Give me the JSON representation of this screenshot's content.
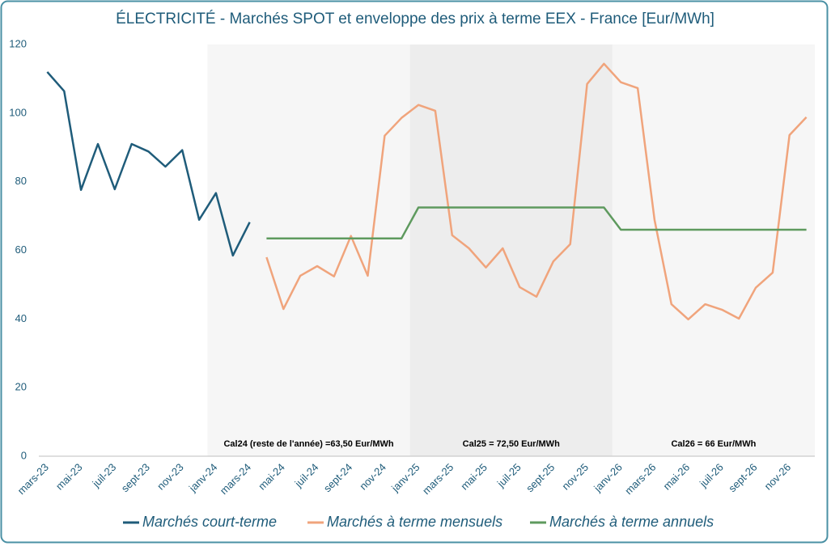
{
  "chart_data": {
    "type": "line",
    "title": "ÉLECTRICITÉ - Marchés SPOT et enveloppe des prix à terme EEX - France [Eur/MWh]",
    "categories": [
      "mars-23",
      null,
      "mai-23",
      null,
      "juil-23",
      null,
      "sept-23",
      null,
      "nov-23",
      null,
      "janv-24",
      null,
      "mars-24",
      null,
      "mai-24",
      null,
      "juil-24",
      null,
      "sept-24",
      null,
      "nov-24",
      null,
      "janv-25",
      null,
      "mars-25",
      null,
      "mai-25",
      null,
      "juil-25",
      null,
      "sept-25",
      null,
      "nov-25",
      null,
      "janv-26",
      null,
      "mars-26",
      null,
      "mai-26",
      null,
      "juil-26",
      null,
      "sept-26",
      null,
      "nov-26",
      null
    ],
    "ylim": [
      0,
      120
    ],
    "yticks": [
      0,
      20,
      40,
      60,
      80,
      100,
      120
    ],
    "series": [
      {
        "name": "Marchés court-terme",
        "color": "#1f5c7a",
        "values": [
          112,
          106.4,
          77.6,
          91,
          77.8,
          91,
          88.8,
          84.4,
          89.2,
          68.9,
          76.7,
          58.5,
          68.2,
          null,
          null,
          null,
          null,
          null,
          null,
          null,
          null,
          null,
          null,
          null,
          null,
          null,
          null,
          null,
          null,
          null,
          null,
          null,
          null,
          null,
          null,
          null,
          null,
          null,
          null,
          null,
          null,
          null,
          null,
          null,
          null,
          null
        ]
      },
      {
        "name": "Marchés à terme mensuels",
        "color": "#f0a47c",
        "values": [
          null,
          null,
          null,
          null,
          null,
          null,
          null,
          null,
          null,
          null,
          null,
          null,
          null,
          58.0,
          42.9,
          52.6,
          55.4,
          52.4,
          64.2,
          52.6,
          93.4,
          98.6,
          102.4,
          100.7,
          64.4,
          60.6,
          55.0,
          60.6,
          49.3,
          46.5,
          56.8,
          61.8,
          108.5,
          114.4,
          109,
          107.3,
          68.9,
          44.3,
          39.9,
          44.3,
          42.7,
          40.1,
          49.1,
          53.5,
          93.6,
          98.8
        ]
      },
      {
        "name": "Marchés à terme annuels",
        "color": "#5e9a5e",
        "values": [
          null,
          null,
          null,
          null,
          null,
          null,
          null,
          null,
          null,
          null,
          null,
          null,
          null,
          63.5,
          63.5,
          63.5,
          63.5,
          63.5,
          63.5,
          63.5,
          63.5,
          63.5,
          72.5,
          72.5,
          72.5,
          72.5,
          72.5,
          72.5,
          72.5,
          72.5,
          72.5,
          72.5,
          72.5,
          72.5,
          66,
          66,
          66,
          66,
          66,
          66,
          66,
          66,
          66,
          66,
          66,
          66
        ]
      }
    ],
    "periods": [
      {
        "label": "Cal24 (reste de l'année) =63,50 Eur/MWh",
        "start": "janv-24",
        "fill": "#f6f6f6"
      },
      {
        "label": "Cal25 = 72,50 Eur/MWh",
        "start": "janv-25",
        "fill": "#ededed"
      },
      {
        "label": "Cal26 = 66 Eur/MWh",
        "start": "janv-26",
        "fill": "#f6f6f6"
      }
    ],
    "legend": "bottom"
  }
}
